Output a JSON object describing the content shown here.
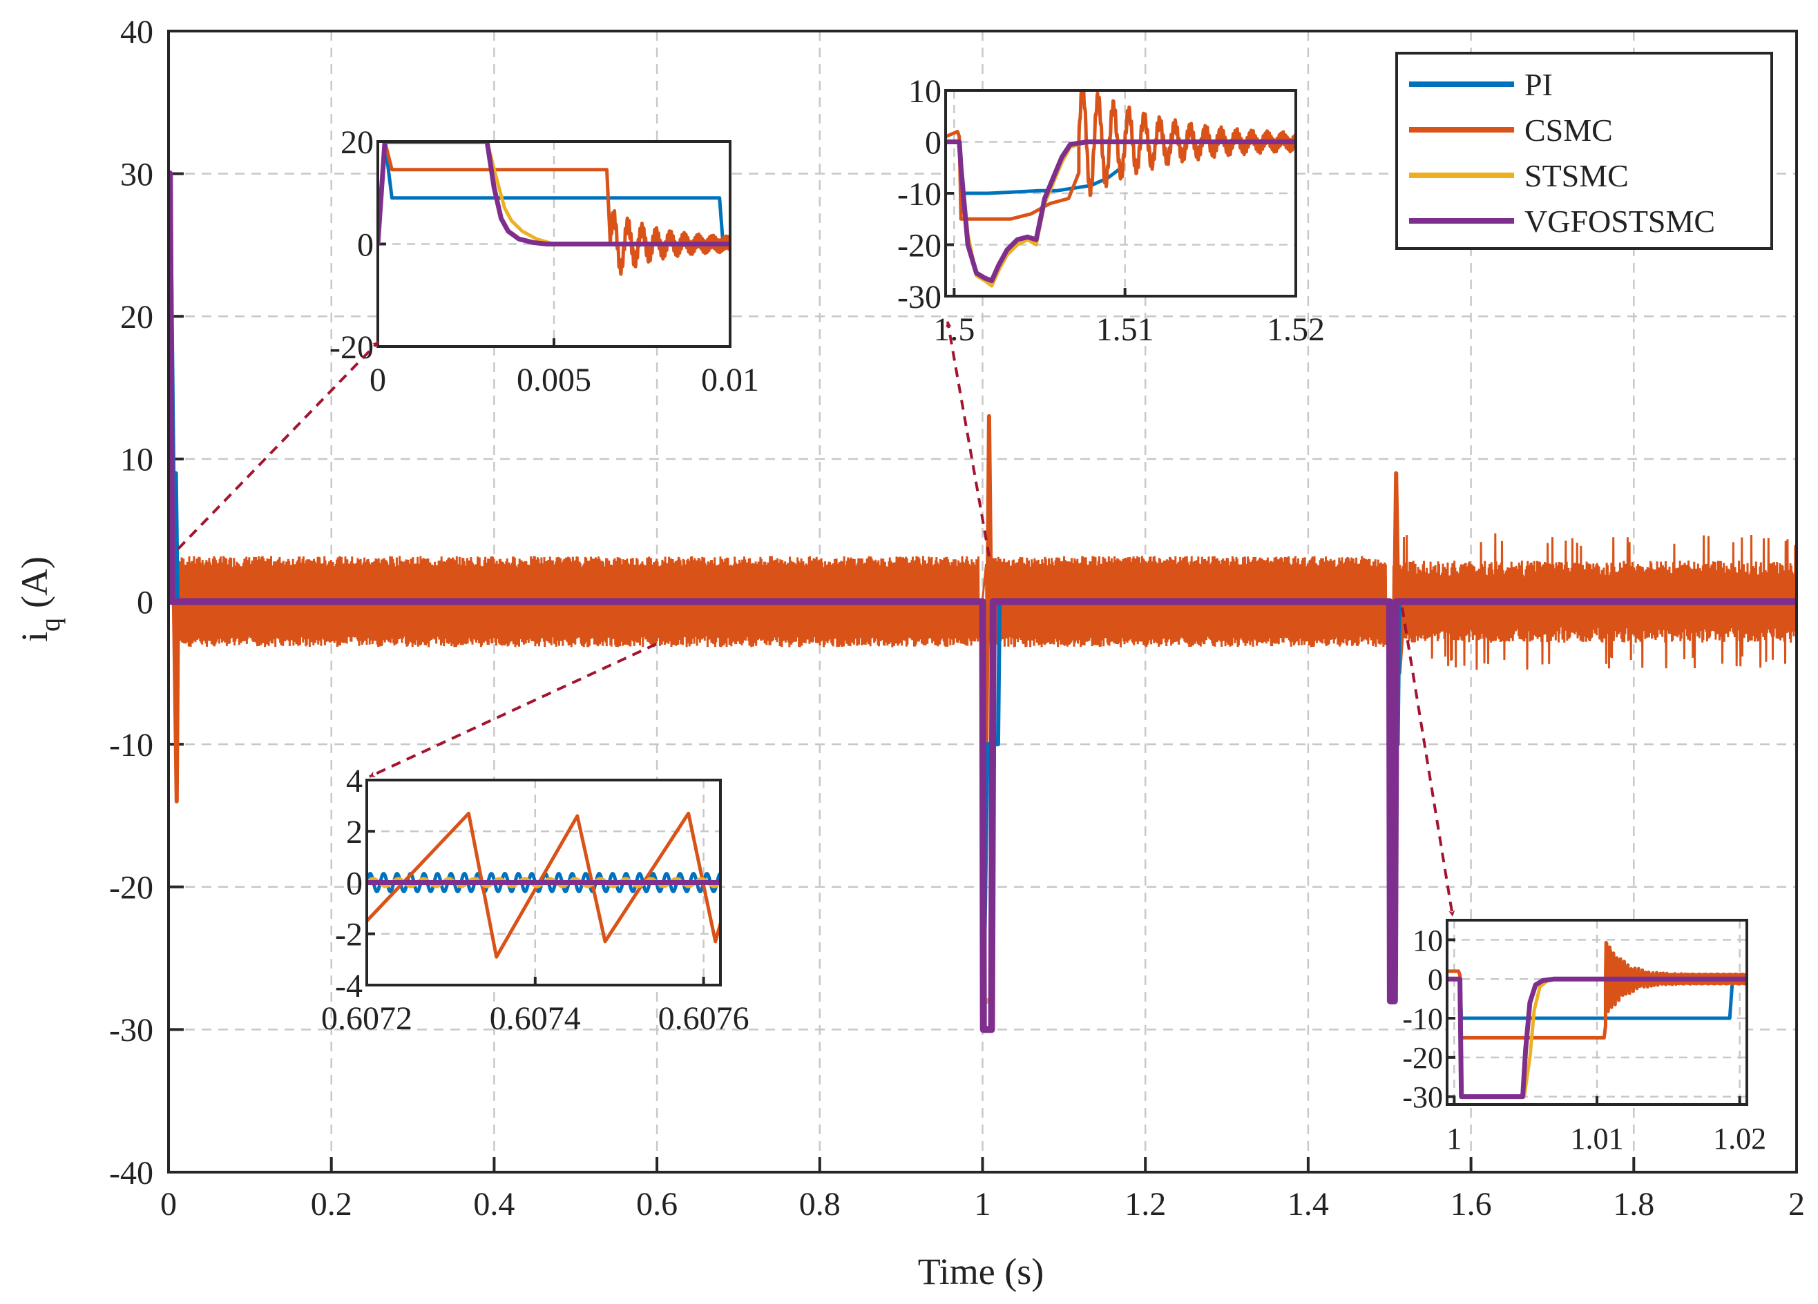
{
  "colors": {
    "PI": "#0072BD",
    "CSMC": "#D95319",
    "STSMC": "#EDB120",
    "VGFOSTSMC": "#7E2F8E",
    "arrow": "#A2142F",
    "grid": "#c8c8c8",
    "axis": "#262626"
  },
  "chart_data": [
    {
      "id": "main",
      "type": "line",
      "xlabel": "Time (s)",
      "ylabel": "i",
      "ylabel_sub": "q",
      "ylabel_unit": "(A)",
      "xlim": [
        0,
        2
      ],
      "ylim": [
        -40,
        40
      ],
      "xticks": [
        0,
        0.2,
        0.4,
        0.6,
        0.8,
        1,
        1.2,
        1.4,
        1.6,
        1.8,
        2
      ],
      "xtick_labels": [
        "0",
        "0.2",
        "0.4",
        "0.6",
        "0.8",
        "1",
        "1.2",
        "1.4",
        "1.6",
        "1.8",
        "2"
      ],
      "yticks": [
        -40,
        -30,
        -20,
        -10,
        0,
        10,
        20,
        30,
        40
      ],
      "ytick_labels": [
        "-40",
        "-30",
        "-20",
        "-10",
        "0",
        "10",
        "20",
        "30",
        "40"
      ],
      "legend": {
        "position": "top-right",
        "entries": [
          "PI",
          "CSMC",
          "STSMC",
          "VGFOSTSMC"
        ]
      },
      "series": [
        {
          "name": "PI",
          "x": [
            0,
            0.002,
            0.006,
            0.009,
            0.011,
            0.02,
            1.0,
            1.002,
            1.006,
            1.01,
            1.019,
            1.021,
            1.03,
            1.5,
            1.502,
            1.506,
            1.51,
            1.512,
            1.52,
            2.0
          ],
          "y": [
            0,
            30,
            9,
            9,
            0,
            0,
            0,
            -25,
            -10,
            -10,
            -10,
            0,
            0,
            0,
            -25,
            -10,
            -10,
            0,
            0,
            0
          ]
        },
        {
          "name": "CSMC",
          "x": [
            0,
            0.003,
            0.01,
            0.012,
            0.02,
            1.0,
            1.004,
            1.008,
            1.012,
            1.015,
            1.5,
            1.503,
            1.508,
            1.512,
            1.518,
            2.0
          ],
          "y": [
            0,
            15,
            -14,
            2,
            0,
            0,
            -16,
            13,
            -8,
            0,
            0,
            -15,
            9,
            -5,
            0,
            0
          ],
          "noise_band": 3.2
        },
        {
          "name": "STSMC",
          "x": [
            0,
            0.001,
            0.004,
            0.006,
            1.0,
            1.001,
            1.011,
            1.013,
            1.5,
            1.501,
            1.506,
            1.508,
            2.0
          ],
          "y": [
            0,
            30,
            0,
            0,
            0,
            -28,
            -28,
            0,
            0,
            -28,
            -28,
            0,
            0
          ]
        },
        {
          "name": "VGFOSTSMC",
          "x": [
            0,
            0.001,
            0.004,
            0.006,
            1.0,
            1.001,
            1.011,
            1.013,
            1.5,
            1.501,
            1.506,
            1.508,
            2.0
          ],
          "y": [
            0,
            30,
            0,
            0,
            0,
            -30,
            -30,
            0,
            0,
            -28,
            -28,
            0,
            0
          ]
        }
      ]
    },
    {
      "id": "inset_start",
      "type": "line",
      "xlim": [
        0,
        0.01
      ],
      "ylim": [
        -20,
        20
      ],
      "xticks": [
        0,
        0.005,
        0.01
      ],
      "xtick_labels": [
        "0",
        "0.005",
        "0.01"
      ],
      "yticks": [
        -20,
        0,
        20
      ],
      "ytick_labels": [
        "-20",
        "0",
        "20"
      ],
      "series": [
        {
          "name": "PI",
          "x": [
            0,
            0.0002,
            0.0004,
            0.0097,
            0.0098,
            0.01
          ],
          "y": [
            0,
            20,
            9,
            9,
            0,
            0
          ]
        },
        {
          "name": "CSMC",
          "x": [
            0,
            0.0002,
            0.0004,
            0.0065,
            0.0066
          ],
          "y": [
            0,
            20,
            14.5,
            14.5,
            0
          ],
          "ring": {
            "t0": 0.0066,
            "t1": 0.01,
            "amp": 6,
            "period": 0.0004,
            "tau": 0.0012
          }
        },
        {
          "name": "STSMC",
          "x": [
            0,
            0.0002,
            0.0003,
            0.0031,
            0.0034,
            0.0036,
            0.0038,
            0.0041,
            0.0045,
            0.005,
            0.01
          ],
          "y": [
            0,
            20,
            20,
            20,
            12,
            7,
            4.5,
            2.5,
            1,
            0,
            0
          ]
        },
        {
          "name": "VGFOSTSMC",
          "x": [
            0,
            0.0002,
            0.0003,
            0.0031,
            0.0033,
            0.0035,
            0.0037,
            0.004,
            0.0044,
            0.0048,
            0.01
          ],
          "y": [
            0,
            20,
            20,
            20,
            11,
            5,
            2.5,
            1,
            0.3,
            0,
            0
          ]
        }
      ]
    },
    {
      "id": "inset_15",
      "type": "line",
      "xlim": [
        1.4995,
        1.52
      ],
      "ylim": [
        -30,
        10
      ],
      "xticks": [
        1.5,
        1.51,
        1.52
      ],
      "xtick_labels": [
        "1.5",
        "1.51",
        "1.52"
      ],
      "yticks": [
        -30,
        -20,
        -10,
        0,
        10
      ],
      "ytick_labels": [
        "-30",
        "-20",
        "-10",
        "0",
        "10"
      ],
      "series": [
        {
          "name": "PI",
          "x": [
            1.4995,
            1.5003,
            1.5004,
            1.502,
            1.505,
            1.506,
            1.507,
            1.508,
            1.509,
            1.5098
          ],
          "y": [
            0,
            0,
            -10,
            -10,
            -9.5,
            -9.5,
            -9,
            -8.5,
            -7,
            -5
          ]
        },
        {
          "name": "CSMC",
          "x": [
            1.4995,
            1.5002,
            1.5003,
            1.5004,
            1.5019,
            1.5033,
            1.5045,
            1.5056,
            1.5067,
            1.5073
          ],
          "y": [
            1,
            2,
            1,
            -15,
            -15,
            -15,
            -14,
            -12,
            -11,
            -6
          ],
          "ring": {
            "t0": 1.5073,
            "t1": 1.52,
            "amp": 11,
            "period": 0.0009,
            "tau": 0.0045
          }
        },
        {
          "name": "STSMC",
          "x": [
            1.4995,
            1.5003,
            1.5004,
            1.5008,
            1.5013,
            1.5018,
            1.5022,
            1.5026,
            1.5031,
            1.5037,
            1.5043,
            1.5048,
            1.5053,
            1.5058,
            1.5063,
            1.5068,
            1.5078,
            1.52
          ],
          "y": [
            0,
            0,
            -5,
            -18,
            -26,
            -27,
            -28,
            -25,
            -22,
            -20,
            -19,
            -20,
            -12,
            -8,
            -4,
            -1,
            0,
            0
          ]
        },
        {
          "name": "VGFOSTSMC",
          "x": [
            1.4995,
            1.5003,
            1.5004,
            1.5008,
            1.5013,
            1.5018,
            1.5022,
            1.5026,
            1.5031,
            1.5037,
            1.5043,
            1.5048,
            1.5053,
            1.5058,
            1.5063,
            1.5068,
            1.5078,
            1.52
          ],
          "y": [
            0,
            0,
            -5,
            -20,
            -25.5,
            -26.5,
            -27,
            -24,
            -21,
            -19,
            -18.5,
            -19,
            -11,
            -7,
            -3,
            -0.5,
            0,
            0
          ]
        }
      ]
    },
    {
      "id": "inset_zoom",
      "type": "line",
      "xlim": [
        0.6072,
        0.60762
      ],
      "ylim": [
        -4,
        4
      ],
      "xticks": [
        0.6072,
        0.6074,
        0.6076
      ],
      "xtick_labels": [
        "0.6072",
        "0.6074",
        "0.6076"
      ],
      "yticks": [
        -4,
        -2,
        0,
        2,
        4
      ],
      "ytick_labels": [
        "-4",
        "-2",
        "0",
        "2",
        "4"
      ],
      "series": [
        {
          "name": "PI",
          "wave": {
            "amp": 0.35,
            "period": 1.6e-05
          }
        },
        {
          "name": "CSMC",
          "x": [
            0.6072,
            0.607321,
            0.607354,
            0.60745,
            0.607483,
            0.607582,
            0.607614,
            0.60762
          ],
          "y": [
            -1.5,
            2.7,
            -2.9,
            2.6,
            -2.3,
            2.7,
            -2.3,
            -1.6
          ]
        },
        {
          "name": "STSMC",
          "wave": {
            "amp": 0.15,
            "period": 3e-05
          }
        },
        {
          "name": "VGFOSTSMC",
          "x": [
            0.6072,
            0.60762
          ],
          "y": [
            0,
            0
          ]
        }
      ]
    },
    {
      "id": "inset_1",
      "type": "line",
      "xlim": [
        0.9995,
        1.0205
      ],
      "ylim": [
        -32,
        15
      ],
      "xticks": [
        1,
        1.01,
        1.02
      ],
      "xtick_labels": [
        "1",
        "1.01",
        "1.02"
      ],
      "yticks": [
        -30,
        -20,
        -10,
        0,
        10
      ],
      "ytick_labels": [
        "-30",
        "-20",
        "-10",
        "0",
        "10"
      ],
      "series": [
        {
          "name": "PI",
          "x": [
            0.9995,
            1.0004,
            1.0005,
            1.0193,
            1.0195,
            1.0205
          ],
          "y": [
            0,
            0,
            -10,
            -10,
            0,
            0
          ]
        },
        {
          "name": "CSMC",
          "x": [
            0.9995,
            1.0003,
            1.0004,
            1.0005,
            1.0105,
            1.0106
          ],
          "y": [
            2,
            2,
            1,
            -15,
            -15,
            -12
          ],
          "ring": {
            "t0": 1.0106,
            "t1": 1.0205,
            "amp": 10,
            "period": 0.00025,
            "tau": 0.0012
          }
        },
        {
          "name": "STSMC",
          "x": [
            0.9995,
            1.0004,
            1.0005,
            1.0049,
            1.0053,
            1.0056,
            1.006,
            1.0065,
            1.0072,
            1.0205
          ],
          "y": [
            0,
            0,
            -30,
            -30,
            -20,
            -8,
            -2,
            -0.5,
            0,
            0
          ]
        },
        {
          "name": "VGFOSTSMC",
          "x": [
            0.9995,
            1.0004,
            1.0005,
            1.0048,
            1.005,
            1.0053,
            1.0057,
            1.0062,
            1.007,
            1.0205
          ],
          "y": [
            0,
            0,
            -30,
            -30,
            -18,
            -6,
            -1.5,
            -0.4,
            0,
            0
          ]
        }
      ]
    }
  ]
}
